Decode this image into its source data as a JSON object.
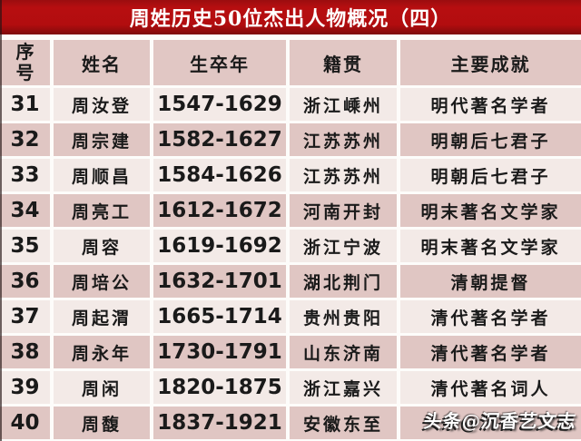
{
  "title": "周姓历史50位杰出人物概况（四）",
  "watermark": "头条@沉香艺文志",
  "colors": {
    "title_bg": "#b20d0f",
    "title_text": "#ffffff",
    "header_bg": "#e1c7c4",
    "row_odd_bg": "#f3eae7",
    "row_even_bg": "#e0c6c3",
    "text": "#1a1a1a"
  },
  "table": {
    "headers": [
      "序号",
      "姓名",
      "生卒年",
      "籍贯",
      "主要成就"
    ],
    "rows": [
      [
        "31",
        "周汝登",
        "1547-1629",
        "浙江嵊州",
        "明代著名学者"
      ],
      [
        "32",
        "周宗建",
        "1582-1627",
        "江苏苏州",
        "明朝后七君子"
      ],
      [
        "33",
        "周顺昌",
        "1584-1626",
        "江苏苏州",
        "明朝后七君子"
      ],
      [
        "34",
        "周亮工",
        "1612-1672",
        "河南开封",
        "明末著名文学家"
      ],
      [
        "35",
        "周容",
        "1619-1692",
        "浙江宁波",
        "明末著名文学家"
      ],
      [
        "36",
        "周培公",
        "1632-1701",
        "湖北荆门",
        "清朝提督"
      ],
      [
        "37",
        "周起渭",
        "1665-1714",
        "贵州贵阳",
        "清代著名学者"
      ],
      [
        "38",
        "周永年",
        "1730-1791",
        "山东济南",
        "清代著名学者"
      ],
      [
        "39",
        "周闲",
        "1820-1875",
        "浙江嘉兴",
        "清代著名词人"
      ],
      [
        "40",
        "周馥",
        "1837-1921",
        "安徽东至",
        ""
      ]
    ]
  }
}
